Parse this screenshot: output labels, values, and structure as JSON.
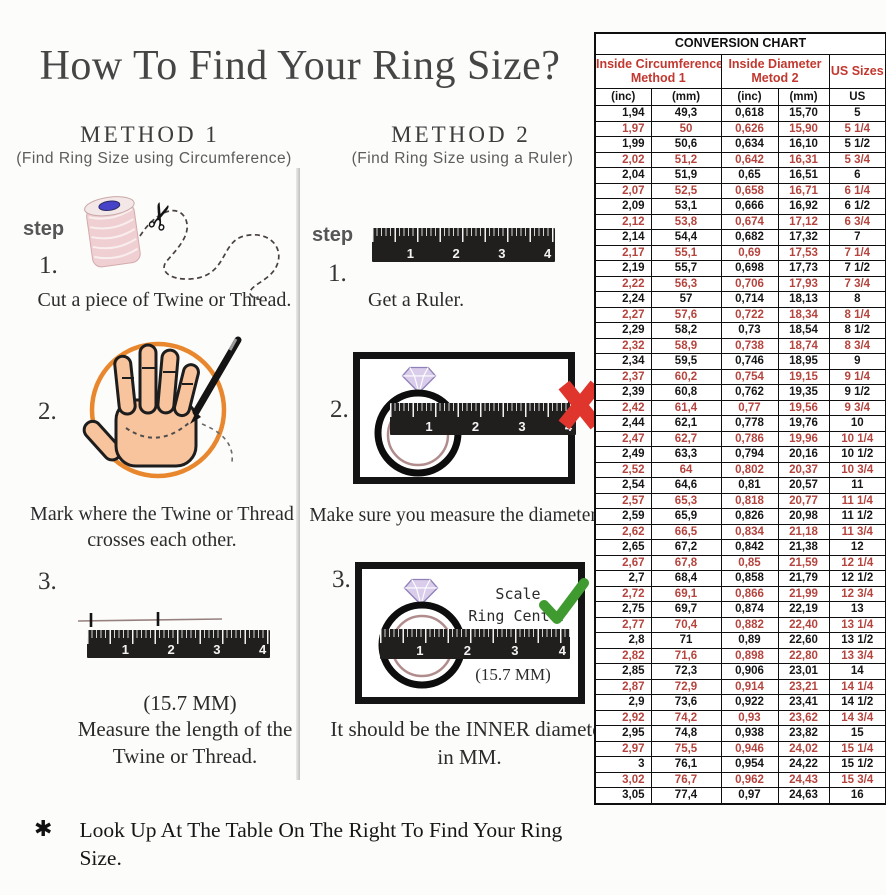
{
  "page": {
    "title": "How To Find Your Ring Size?",
    "footnote_symbol": "✱",
    "footnote": "Look Up At The Table On The Right To Find Your Ring Size."
  },
  "shared": {
    "step_label": "step",
    "ruler_numbers": [
      "1",
      "2",
      "3",
      "4"
    ]
  },
  "method1": {
    "heading": "METHOD 1",
    "subheading": "(Find Ring Size using Circumference)",
    "steps": [
      {
        "number": "1.",
        "caption": "Cut a piece of  Twine or Thread."
      },
      {
        "number": "2.",
        "caption_line1": "Mark where the Twine or Thread",
        "caption_line2": "crosses each other."
      },
      {
        "number": "3.",
        "measurement": "(15.7 MM)",
        "caption_line1": "Measure the length of the",
        "caption_line2": "Twine or Thread."
      }
    ]
  },
  "method2": {
    "heading": "METHOD 2",
    "subheading": "(Find Ring Size using a Ruler)",
    "steps": [
      {
        "number": "1.",
        "caption": "Get a Ruler."
      },
      {
        "number": "2.",
        "caption": "Make sure you measure the diameter."
      },
      {
        "number": "3.",
        "scale_label_line1": "Scale",
        "scale_label_line2": "Ring Center",
        "measurement": "(15.7 MM)",
        "caption_line1": "It should be the INNER diameter",
        "caption_line2": "in MM."
      }
    ]
  },
  "conversion_chart": {
    "title": "CONVERSION CHART",
    "group_headers": [
      {
        "line1": "Inside Circumference",
        "line2": "Method 1"
      },
      {
        "line1": "Inside Diameter",
        "line2": "Metod 2"
      },
      {
        "line1": "US Sizes",
        "line2": ""
      }
    ],
    "column_headers": [
      "(inc)",
      "(mm)",
      "(inc)",
      "(mm)",
      "US"
    ],
    "rows": [
      [
        "1,94",
        "49,3",
        "0,618",
        "15,70",
        "5"
      ],
      [
        "1,97",
        "50",
        "0,626",
        "15,90",
        "5 1/4"
      ],
      [
        "1,99",
        "50,6",
        "0,634",
        "16,10",
        "5 1/2"
      ],
      [
        "2,02",
        "51,2",
        "0,642",
        "16,31",
        "5 3/4"
      ],
      [
        "2,04",
        "51,9",
        "0,65",
        "16,51",
        "6"
      ],
      [
        "2,07",
        "52,5",
        "0,658",
        "16,71",
        "6 1/4"
      ],
      [
        "2,09",
        "53,1",
        "0,666",
        "16,92",
        "6 1/2"
      ],
      [
        "2,12",
        "53,8",
        "0,674",
        "17,12",
        "6 3/4"
      ],
      [
        "2,14",
        "54,4",
        "0,682",
        "17,32",
        "7"
      ],
      [
        "2,17",
        "55,1",
        "0,69",
        "17,53",
        "7 1/4"
      ],
      [
        "2,19",
        "55,7",
        "0,698",
        "17,73",
        "7 1/2"
      ],
      [
        "2,22",
        "56,3",
        "0,706",
        "17,93",
        "7 3/4"
      ],
      [
        "2,24",
        "57",
        "0,714",
        "18,13",
        "8"
      ],
      [
        "2,27",
        "57,6",
        "0,722",
        "18,34",
        "8 1/4"
      ],
      [
        "2,29",
        "58,2",
        "0,73",
        "18,54",
        "8 1/2"
      ],
      [
        "2,32",
        "58,9",
        "0,738",
        "18,74",
        "8 3/4"
      ],
      [
        "2,34",
        "59,5",
        "0,746",
        "18,95",
        "9"
      ],
      [
        "2,37",
        "60,2",
        "0,754",
        "19,15",
        "9 1/4"
      ],
      [
        "2,39",
        "60,8",
        "0,762",
        "19,35",
        "9 1/2"
      ],
      [
        "2,42",
        "61,4",
        "0,77",
        "19,56",
        "9 3/4"
      ],
      [
        "2,44",
        "62,1",
        "0,778",
        "19,76",
        "10"
      ],
      [
        "2,47",
        "62,7",
        "0,786",
        "19,96",
        "10 1/4"
      ],
      [
        "2,49",
        "63,3",
        "0,794",
        "20,16",
        "10 1/2"
      ],
      [
        "2,52",
        "64",
        "0,802",
        "20,37",
        "10 3/4"
      ],
      [
        "2,54",
        "64,6",
        "0,81",
        "20,57",
        "11"
      ],
      [
        "2,57",
        "65,3",
        "0,818",
        "20,77",
        "11 1/4"
      ],
      [
        "2,59",
        "65,9",
        "0,826",
        "20,98",
        "11 1/2"
      ],
      [
        "2,62",
        "66,5",
        "0,834",
        "21,18",
        "11 3/4"
      ],
      [
        "2,65",
        "67,2",
        "0,842",
        "21,38",
        "12"
      ],
      [
        "2,67",
        "67,8",
        "0,85",
        "21,59",
        "12 1/4"
      ],
      [
        "2,7",
        "68,4",
        "0,858",
        "21,79",
        "12 1/2"
      ],
      [
        "2,72",
        "69,1",
        "0,866",
        "21,99",
        "12 3/4"
      ],
      [
        "2,75",
        "69,7",
        "0,874",
        "22,19",
        "13"
      ],
      [
        "2,77",
        "70,4",
        "0,882",
        "22,40",
        "13 1/4"
      ],
      [
        "2,8",
        "71",
        "0,89",
        "22,60",
        "13 1/2"
      ],
      [
        "2,82",
        "71,6",
        "0,898",
        "22,80",
        "13 3/4"
      ],
      [
        "2,85",
        "72,3",
        "0,906",
        "23,01",
        "14"
      ],
      [
        "2,87",
        "72,9",
        "0,914",
        "23,21",
        "14 1/4"
      ],
      [
        "2,9",
        "73,6",
        "0,922",
        "23,41",
        "14 1/2"
      ],
      [
        "2,92",
        "74,2",
        "0,93",
        "23,62",
        "14 3/4"
      ],
      [
        "2,95",
        "74,8",
        "0,938",
        "23,82",
        "15"
      ],
      [
        "2,97",
        "75,5",
        "0,946",
        "24,02",
        "15 1/4"
      ],
      [
        "3",
        "76,1",
        "0,954",
        "24,22",
        "15 1/2"
      ],
      [
        "3,02",
        "76,7",
        "0,962",
        "24,43",
        "15 3/4"
      ],
      [
        "3,05",
        "77,4",
        "0,97",
        "24,63",
        "16"
      ]
    ]
  },
  "colors": {
    "table_red": "#b5443e",
    "header_red": "#c2382f",
    "check_green": "#3f9b2f",
    "x_red": "#e0352c",
    "ring_band_rose": "#b18c8c",
    "diamond_purple": "#d9cdeb",
    "hand_skin": "#f7c49d",
    "circle_orange": "#e8872e"
  }
}
